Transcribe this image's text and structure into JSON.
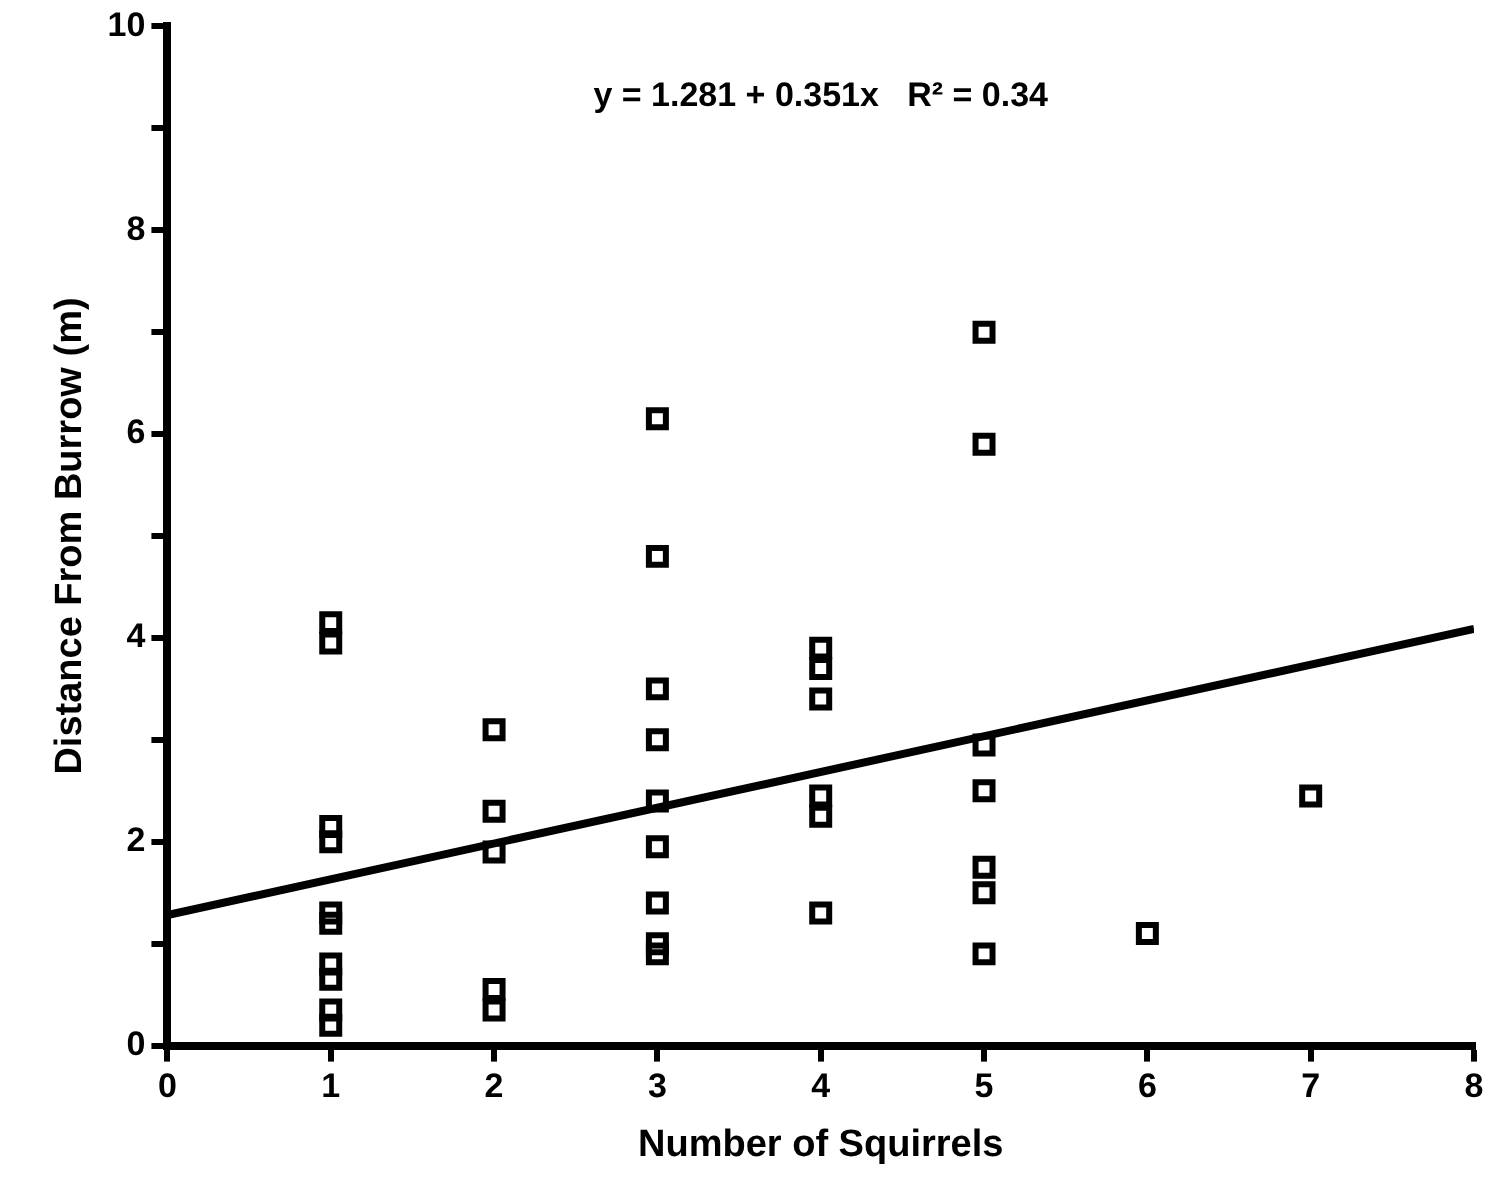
{
  "chart_data": {
    "type": "scatter",
    "xlabel": "Number of Squirrels",
    "ylabel": "Distance From Burrow (m)",
    "annotations": [
      "y = 1.281 + 0.351x   R² = 0.34"
    ],
    "xlim": [
      0,
      8
    ],
    "xticks": [
      0,
      1,
      2,
      3,
      4,
      5,
      6,
      7,
      8
    ],
    "ylim": [
      0,
      10
    ],
    "yticks": [
      0,
      {
        "value": 1,
        "label": null
      },
      2,
      {
        "value": 3,
        "label": null
      },
      4,
      {
        "value": 5,
        "label": null
      },
      6,
      {
        "value": 7,
        "label": null
      },
      8,
      {
        "value": 9,
        "label": null
      },
      10
    ],
    "grid": false,
    "legend": false,
    "marker": "square",
    "series": [
      {
        "color": "#000000",
        "x": [
          1,
          1,
          1,
          1,
          1,
          1,
          1,
          1,
          1,
          1,
          2,
          2,
          2,
          2,
          2,
          3,
          3,
          3,
          3,
          3,
          3,
          3,
          3,
          3,
          4,
          4,
          4,
          4,
          4,
          4,
          5,
          5,
          5,
          5,
          5,
          5,
          5,
          6,
          7
        ],
        "values": [
          4.15,
          3.95,
          2.15,
          2.0,
          1.3,
          1.2,
          0.8,
          0.65,
          0.35,
          0.2,
          3.1,
          2.3,
          1.9,
          0.55,
          0.35,
          6.15,
          4.8,
          3.5,
          3.0,
          2.4,
          1.95,
          1.4,
          1.0,
          0.9,
          3.9,
          3.7,
          3.4,
          2.45,
          2.25,
          1.3,
          7.0,
          5.9,
          2.95,
          2.5,
          1.75,
          1.5,
          0.9,
          1.1,
          2.45
        ]
      },
      {
        "type": "line",
        "color": "#000000",
        "marker": "none",
        "line_style": "solid",
        "x": [
          0,
          8
        ],
        "values": [
          1.281,
          4.089
        ]
      }
    ]
  }
}
